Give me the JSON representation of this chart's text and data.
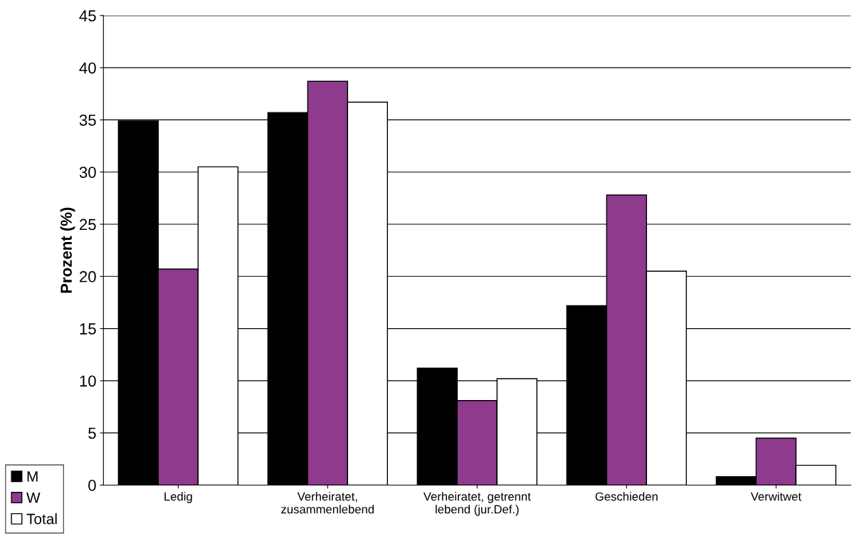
{
  "chart_data": {
    "type": "bar",
    "ylabel": "Prozent (%)",
    "categories": [
      "Ledig",
      "Verheiratet,\nzusammenlebend",
      "Verheiratet, getrennt\nlebend (jur.Def.)",
      "Geschieden",
      "Verwitwet"
    ],
    "series": [
      {
        "name": "M",
        "color": "#000000",
        "values": [
          34.9,
          35.7,
          11.2,
          17.2,
          0.8
        ]
      },
      {
        "name": "W",
        "color": "#8e3b8e",
        "values": [
          20.7,
          38.7,
          8.1,
          27.8,
          4.5
        ]
      },
      {
        "name": "Total",
        "color": "#ffffff",
        "values": [
          30.5,
          36.7,
          10.2,
          20.5,
          1.9
        ]
      }
    ],
    "ylim": [
      0,
      45
    ],
    "yticks": [
      0,
      5,
      10,
      15,
      20,
      25,
      30,
      35,
      40,
      45
    ],
    "grid": "y",
    "legend": "bottom left"
  }
}
